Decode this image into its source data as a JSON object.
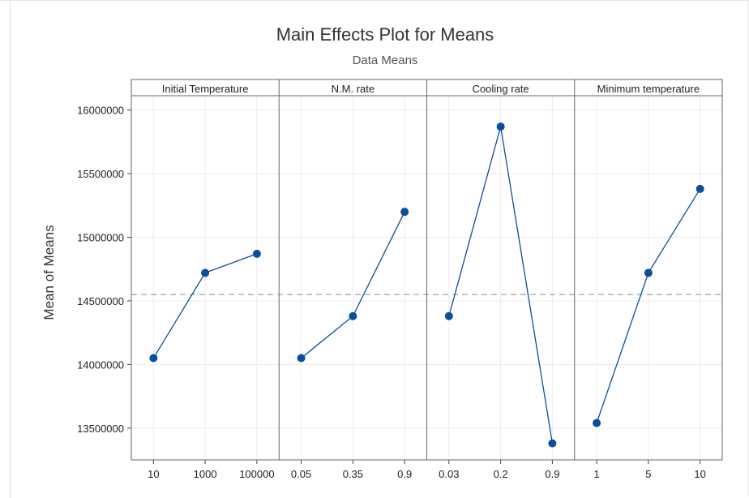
{
  "chart_data": {
    "type": "line",
    "title": "Main Effects Plot for Means",
    "subtitle": "Data Means",
    "ylabel": "Mean of Means",
    "ylim": [
      13250000,
      16100000
    ],
    "yticks": [
      "13500000",
      "14000000",
      "14500000",
      "15000000",
      "15500000",
      "16000000"
    ],
    "ytick_values": [
      13500000,
      14000000,
      14500000,
      15000000,
      15500000,
      16000000
    ],
    "reference_mean": 14550000,
    "grid": true,
    "colors": {
      "series": "#0b4f9c",
      "reference": "#a0a0a0",
      "grid": "#ececec",
      "panel_border": "#666666"
    },
    "panels": [
      {
        "name": "Initial Temperature",
        "categories": [
          "10",
          "1000",
          "100000"
        ],
        "values": [
          14050000,
          14720000,
          14870000
        ]
      },
      {
        "name": "N.M. rate",
        "categories": [
          "0.05",
          "0.35",
          "0.9"
        ],
        "values": [
          14050000,
          14380000,
          15200000
        ]
      },
      {
        "name": "Cooling rate",
        "categories": [
          "0.03",
          "0.2",
          "0.9"
        ],
        "values": [
          14380000,
          15870000,
          13380000
        ]
      },
      {
        "name": "Minimum temperature",
        "categories": [
          "1",
          "5",
          "10"
        ],
        "values": [
          13540000,
          14720000,
          15380000
        ]
      }
    ]
  }
}
